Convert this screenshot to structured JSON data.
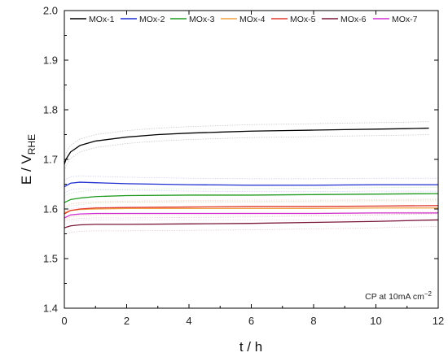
{
  "chart_data": {
    "type": "line",
    "xlabel": "t / h",
    "ylabel_main": "E / V",
    "ylabel_sub": "RHE",
    "xlim": [
      0,
      12
    ],
    "ylim": [
      1.4,
      2.0
    ],
    "xticks": [
      0,
      2,
      4,
      6,
      8,
      10,
      12
    ],
    "yticks": [
      1.4,
      1.5,
      1.6,
      1.7,
      1.8,
      1.9,
      2.0
    ],
    "xtick_labels": [
      "0",
      "2",
      "4",
      "6",
      "8",
      "10",
      "12"
    ],
    "ytick_labels": [
      "1.4",
      "1.5",
      "1.6",
      "1.7",
      "1.8",
      "1.9",
      "2.0"
    ],
    "legend_position": "top",
    "annotation": "CP at 10mA cm",
    "annotation_sup": "−2",
    "series": [
      {
        "name": "MOx-1",
        "color": "#000000",
        "x": [
          0,
          0.05,
          0.2,
          0.5,
          1,
          2,
          3,
          4,
          5,
          6,
          7,
          8,
          9,
          10,
          11,
          11.7
        ],
        "y": [
          1.69,
          1.7,
          1.715,
          1.728,
          1.737,
          1.745,
          1.75,
          1.753,
          1.755,
          1.757,
          1.758,
          1.759,
          1.76,
          1.761,
          1.762,
          1.763
        ]
      },
      {
        "name": "MOx-2",
        "color": "#1f2fd0",
        "x": [
          0,
          0.2,
          0.5,
          1,
          2,
          4,
          6,
          8,
          10,
          12
        ],
        "y": [
          1.645,
          1.652,
          1.654,
          1.653,
          1.651,
          1.649,
          1.648,
          1.648,
          1.649,
          1.649
        ]
      },
      {
        "name": "MOx-3",
        "color": "#1e9a1e",
        "x": [
          0,
          0.2,
          0.5,
          1,
          2,
          4,
          6,
          8,
          10,
          12
        ],
        "y": [
          1.613,
          1.619,
          1.622,
          1.625,
          1.627,
          1.628,
          1.628,
          1.629,
          1.63,
          1.631
        ]
      },
      {
        "name": "MOx-4",
        "color": "#f0a040",
        "x": [
          0,
          0.2,
          0.5,
          1,
          2,
          4,
          6,
          8,
          10,
          12
        ],
        "y": [
          1.592,
          1.597,
          1.599,
          1.6,
          1.601,
          1.601,
          1.601,
          1.601,
          1.602,
          1.602
        ]
      },
      {
        "name": "MOx-5",
        "color": "#e03a2a",
        "x": [
          0,
          0.2,
          0.5,
          1,
          2,
          4,
          6,
          8,
          10,
          12
        ],
        "y": [
          1.59,
          1.597,
          1.6,
          1.602,
          1.603,
          1.604,
          1.605,
          1.605,
          1.606,
          1.607
        ]
      },
      {
        "name": "MOx-6",
        "color": "#7a1838",
        "x": [
          0,
          0.2,
          0.5,
          1,
          2,
          4,
          6,
          8,
          10,
          12
        ],
        "y": [
          1.562,
          1.566,
          1.568,
          1.569,
          1.569,
          1.57,
          1.571,
          1.573,
          1.575,
          1.578
        ]
      },
      {
        "name": "MOx-7",
        "color": "#d030d0",
        "x": [
          0,
          0.2,
          0.5,
          1,
          2,
          4,
          6,
          8,
          10,
          12
        ],
        "y": [
          1.582,
          1.588,
          1.59,
          1.591,
          1.591,
          1.591,
          1.591,
          1.591,
          1.592,
          1.592
        ]
      }
    ]
  }
}
